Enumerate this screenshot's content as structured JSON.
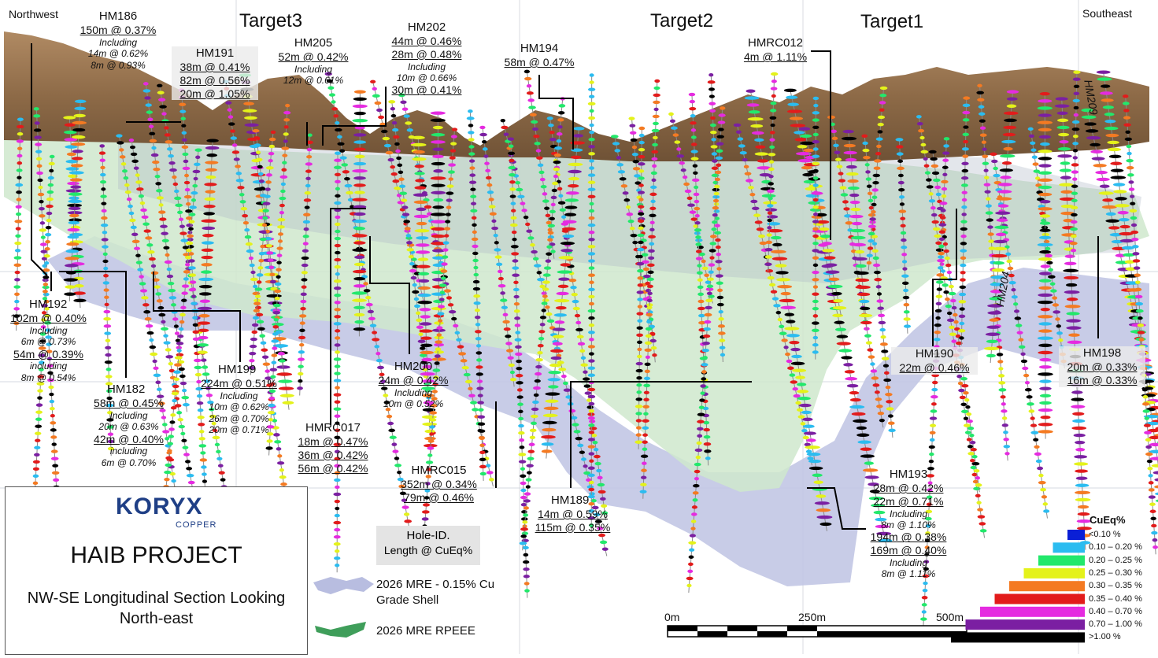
{
  "corners": {
    "left": "Northwest",
    "right": "Southeast"
  },
  "targets": [
    "Target3",
    "Target2",
    "Target1"
  ],
  "holes": {
    "HM186": {
      "id": "HM186",
      "lines": [
        "150m @ 0.37%"
      ],
      "incl_label": "Including",
      "incl": [
        "14m @ 0.62%",
        "8m @ 0.93%"
      ]
    },
    "HM191": {
      "id": "HM191",
      "lines": [
        "38m @ 0.41%",
        "82m @ 0.56%",
        "20m @ 1.05%"
      ]
    },
    "HM205": {
      "id": "HM205",
      "lines": [
        "52m @ 0.42%"
      ],
      "incl_label": "Including",
      "incl": [
        "12m @ 0.61%"
      ]
    },
    "HM202": {
      "id": "HM202",
      "lines": [
        "44m @ 0.46%",
        "28m @ 0.48%"
      ],
      "incl_label": "Including",
      "incl": [
        "10m @ 0.66%"
      ],
      "lines2": [
        "30m @ 0.41%"
      ]
    },
    "HM194": {
      "id": "HM194",
      "lines": [
        "58m @ 0.47%"
      ]
    },
    "HMRC012": {
      "id": "HMRC012",
      "lines": [
        "4m @ 1.11%"
      ]
    },
    "HM192": {
      "id": "HM192",
      "lines": [
        "102m @ 0.40%"
      ],
      "incl_label": "Including",
      "incl": [
        "6m @ 0.73%"
      ],
      "lines2": [
        "54m @ 0.39%"
      ],
      "incl_label2": "including",
      "incl2": [
        "8m @ 0.54%"
      ]
    },
    "HM182": {
      "id": "HM182",
      "lines": [
        "58m @ 0.45%"
      ],
      "incl_label": "Including",
      "incl": [
        "20m @ 0.63%"
      ],
      "lines2": [
        "42m @ 0.40%"
      ],
      "incl_label2": "including",
      "incl2": [
        "6m @ 0.70%"
      ]
    },
    "HM199": {
      "id": "HM199",
      "lines": [
        "224m @ 0.51%"
      ],
      "incl_label": "Including",
      "incl": [
        "10m @ 0.62%",
        "26m @ 0.70%",
        "20m @ 0.71%"
      ]
    },
    "HMRC017": {
      "id": "HMRC017",
      "lines": [
        "18m @ 0.47%",
        "36m @ 0.42%",
        "56m @ 0.42%"
      ]
    },
    "HM200": {
      "id": "HM200",
      "lines": [
        "24m @ 0.42%"
      ],
      "incl_label": "Including",
      "incl": [
        "10m @ 0.52%"
      ]
    },
    "HMRC015": {
      "id": "HMRC015",
      "lines": [
        "352m @ 0.34%",
        "79m @ 0.46%"
      ]
    },
    "HM189": {
      "id": "HM189",
      "lines": [
        "14m @ 0.59%",
        "115m @ 0.35%"
      ]
    },
    "HM190": {
      "id": "HM190",
      "lines": [
        "22m @ 0.46%"
      ]
    },
    "HM198": {
      "id": "HM198",
      "lines": [
        "20m @ 0.33%",
        "16m @ 0.33%"
      ]
    },
    "HM193": {
      "id": "HM193",
      "lines": [
        "28m @ 0.42%",
        "22m @ 0.71%"
      ],
      "incl_label": "Including",
      "incl": [
        "8m @ 1.10%"
      ],
      "lines2": [
        "194m @ 0.38%",
        "169m @ 0.40%"
      ],
      "incl_label2": "Including",
      "incl2": [
        "8m @ 1.11%"
      ]
    }
  },
  "trace_labels": {
    "hm209": "HM209",
    "hm204": "HM204"
  },
  "title_block": {
    "logo_main": "KORYX",
    "logo_sub": "COPPER",
    "project": "HAIB PROJECT",
    "subtitle_1": "NW-SE Longitudinal Section Looking",
    "subtitle_2": "North-east"
  },
  "key": {
    "line1": "Hole-ID.",
    "line2": "Length @ CuEq%"
  },
  "legend_items": {
    "grade_shell": {
      "line1": "2026 MRE - 0.15% Cu",
      "line2": "Grade Shell",
      "color": "#b8bde0"
    },
    "rpeee": {
      "label": "2026 MRE RPEEE",
      "color": "#3f9e5a"
    }
  },
  "scale_bar": {
    "labels": [
      "0m",
      "250m",
      "500m"
    ]
  },
  "cueq_legend": {
    "title": "CuEq%",
    "classes": [
      {
        "label": "<0.10 %",
        "color": "#0a1fd6"
      },
      {
        "label": "0.10 – 0.20 %",
        "color": "#2bbcf0"
      },
      {
        "label": "0.20 – 0.25 %",
        "color": "#22e86b"
      },
      {
        "label": "0.25 – 0.30 %",
        "color": "#e4f21a"
      },
      {
        "label": "0.30 – 0.35 %",
        "color": "#f47a22"
      },
      {
        "label": "0.35 – 0.40 %",
        "color": "#e21b1b"
      },
      {
        "label": "0.40 – 0.70 %",
        "color": "#e52be0"
      },
      {
        "label": "0.70 – 1.00 %",
        "color": "#7b1fa2"
      },
      {
        "label": ">1.00 %",
        "color": "#000000"
      }
    ]
  }
}
